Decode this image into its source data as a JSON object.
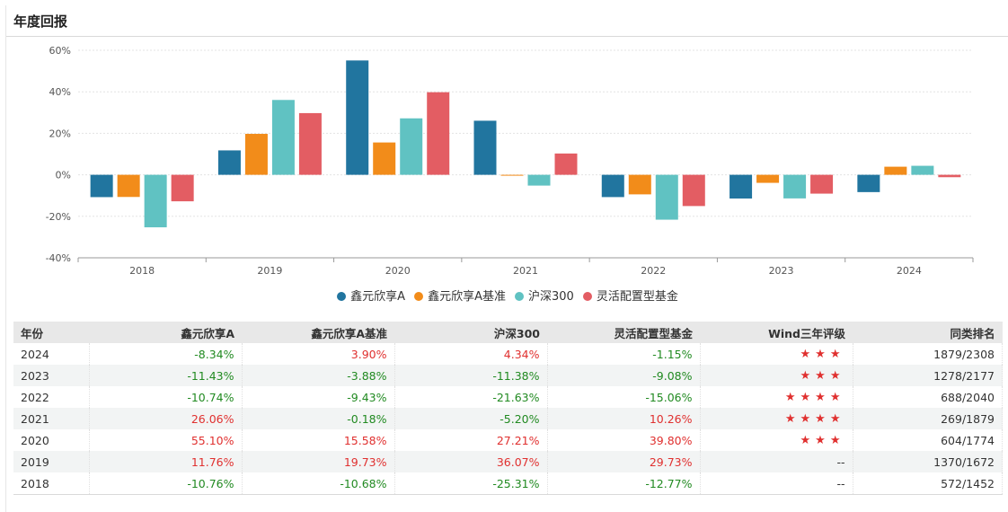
{
  "header": {
    "title": "年度回报"
  },
  "colors": {
    "pos": "#e0302f",
    "neg": "#218a21"
  },
  "chart_data": {
    "type": "bar",
    "categories": [
      "2018",
      "2019",
      "2020",
      "2021",
      "2022",
      "2023",
      "2024"
    ],
    "ylim": [
      -40,
      60
    ],
    "yticks": [
      -40,
      -20,
      0,
      20,
      40,
      60
    ],
    "ytick_labels": [
      "-40%",
      "-20%",
      "0%",
      "20%",
      "40%",
      "60%"
    ],
    "series": [
      {
        "name": "鑫元欣享A",
        "color": "#21759f",
        "values": [
          -10.76,
          11.76,
          55.1,
          26.06,
          -10.74,
          -11.43,
          -8.34
        ]
      },
      {
        "name": "鑫元欣享A基准",
        "color": "#f28c1a",
        "values": [
          -10.68,
          19.73,
          15.58,
          -0.18,
          -9.43,
          -3.88,
          3.9
        ]
      },
      {
        "name": "沪深300",
        "color": "#60c2c2",
        "values": [
          -25.31,
          36.07,
          27.21,
          -5.2,
          -21.63,
          -11.38,
          4.34
        ]
      },
      {
        "name": "灵活配置型基金",
        "color": "#e35d63",
        "values": [
          -12.77,
          29.73,
          39.8,
          10.26,
          -15.06,
          -9.08,
          -1.15
        ]
      }
    ],
    "legend_position": "bottom-center",
    "grid": true
  },
  "table": {
    "headers": [
      "年份",
      "鑫元欣享A",
      "鑫元欣享A基准",
      "沪深300",
      "灵活配置型基金",
      "Wind三年评级",
      "同类排名"
    ],
    "rows": [
      {
        "year": "2024",
        "fund": "-8.34%",
        "bench": "3.90%",
        "hs300": "4.34%",
        "peer": "-1.15%",
        "rating": "★★★",
        "rank": "1879/2308"
      },
      {
        "year": "2023",
        "fund": "-11.43%",
        "bench": "-3.88%",
        "hs300": "-11.38%",
        "peer": "-9.08%",
        "rating": "★★★",
        "rank": "1278/2177"
      },
      {
        "year": "2022",
        "fund": "-10.74%",
        "bench": "-9.43%",
        "hs300": "-21.63%",
        "peer": "-15.06%",
        "rating": "★★★★",
        "rank": "688/2040"
      },
      {
        "year": "2021",
        "fund": "26.06%",
        "bench": "-0.18%",
        "hs300": "-5.20%",
        "peer": "10.26%",
        "rating": "★★★★",
        "rank": "269/1879"
      },
      {
        "year": "2020",
        "fund": "55.10%",
        "bench": "15.58%",
        "hs300": "27.21%",
        "peer": "39.80%",
        "rating": "★★★",
        "rank": "604/1774"
      },
      {
        "year": "2019",
        "fund": "11.76%",
        "bench": "19.73%",
        "hs300": "36.07%",
        "peer": "29.73%",
        "rating": "--",
        "rank": "1370/1672"
      },
      {
        "year": "2018",
        "fund": "-10.76%",
        "bench": "-10.68%",
        "hs300": "-25.31%",
        "peer": "-12.77%",
        "rating": "--",
        "rank": "572/1452"
      }
    ]
  }
}
